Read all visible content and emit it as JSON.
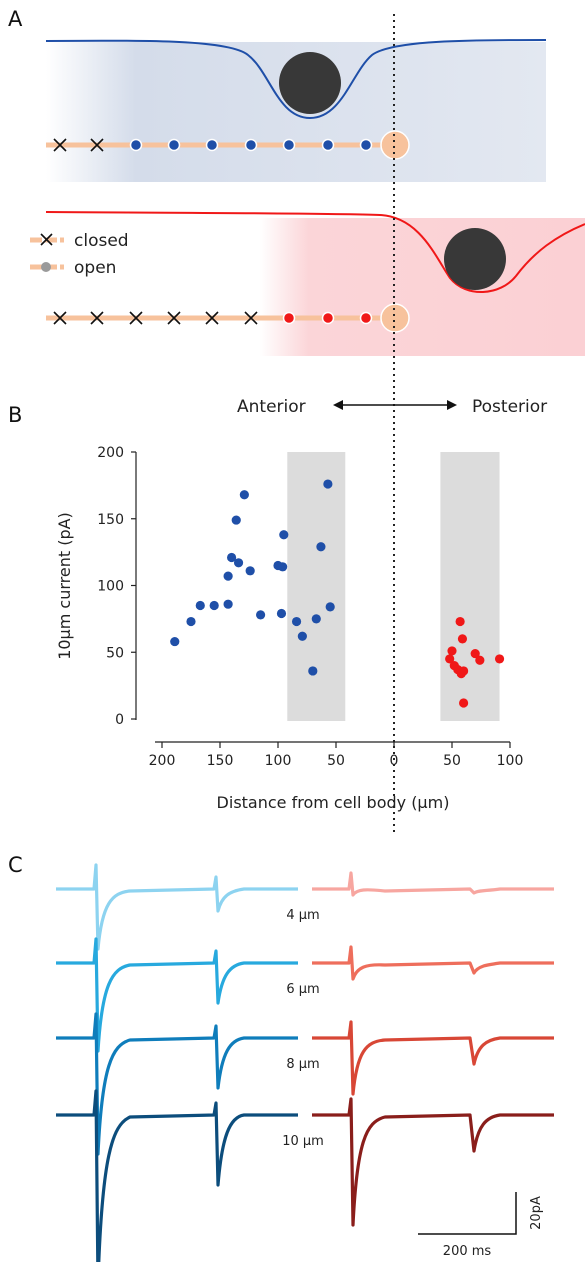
{
  "panels": {
    "a": "A",
    "b": "B",
    "c": "C"
  },
  "legend": {
    "closed": "closed",
    "open": "open"
  },
  "direction": {
    "anterior": "Anterior",
    "posterior": "Posterior"
  },
  "colors": {
    "blue": "#1f4fa8",
    "red": "#f01818",
    "peach": "#f7c29c",
    "shade_blue": "#d4dcea",
    "shade_red": "#fbd5d8",
    "gray_band": "#dcdcdc"
  },
  "chart_data": {
    "type": "scatter",
    "title": "",
    "xlabel": "Distance from cell body (µm)",
    "ylabel": "10µm current (pA)",
    "x_ticks": [
      "200",
      "150",
      "100",
      "50",
      "0",
      "50",
      "100"
    ],
    "y_ticks": [
      "0",
      "50",
      "100",
      "150",
      "200"
    ],
    "xlim": [
      -200,
      100
    ],
    "ylim": [
      0,
      200
    ],
    "x_direction_note": "anterior distances plotted to the left of 0, posterior to the right",
    "shaded_bands": [
      [
        -92,
        -42
      ],
      [
        40,
        91
      ]
    ],
    "series": [
      {
        "group": "anterior",
        "color": "#1f4fa8",
        "points": [
          [
            -189,
            58
          ],
          [
            -175,
            73
          ],
          [
            -167,
            85
          ],
          [
            -155,
            85
          ],
          [
            -143,
            86
          ],
          [
            -143,
            107
          ],
          [
            -140,
            121
          ],
          [
            -136,
            149
          ],
          [
            -134,
            117
          ],
          [
            -129,
            168
          ],
          [
            -124,
            111
          ],
          [
            -115,
            78
          ],
          [
            -100,
            115
          ],
          [
            -97,
            79
          ],
          [
            -96,
            114
          ],
          [
            -95,
            138
          ],
          [
            -84,
            73
          ],
          [
            -79,
            62
          ],
          [
            -70,
            36
          ],
          [
            -67,
            75
          ],
          [
            -63,
            129
          ],
          [
            -57,
            176
          ],
          [
            -55,
            84
          ]
        ]
      },
      {
        "group": "posterior",
        "color": "#f01818",
        "points": [
          [
            48,
            45
          ],
          [
            50,
            51
          ],
          [
            52,
            40
          ],
          [
            55,
            37
          ],
          [
            57,
            73
          ],
          [
            58,
            34
          ],
          [
            59,
            60
          ],
          [
            60,
            36
          ],
          [
            60,
            12
          ],
          [
            70,
            49
          ],
          [
            74,
            44
          ],
          [
            91,
            45
          ]
        ]
      }
    ]
  },
  "traces": {
    "labels": [
      "4 µm",
      "6 µm",
      "8 µm",
      "10 µm"
    ],
    "left_colors": [
      "#8dd3f0",
      "#27a9de",
      "#0f7dbb",
      "#0c4d7c"
    ],
    "right_colors": [
      "#f7a6a0",
      "#ee6e5c",
      "#d84736",
      "#8a1e1b"
    ],
    "scalebar": {
      "time": "200 ms",
      "amp": "20pA"
    }
  }
}
